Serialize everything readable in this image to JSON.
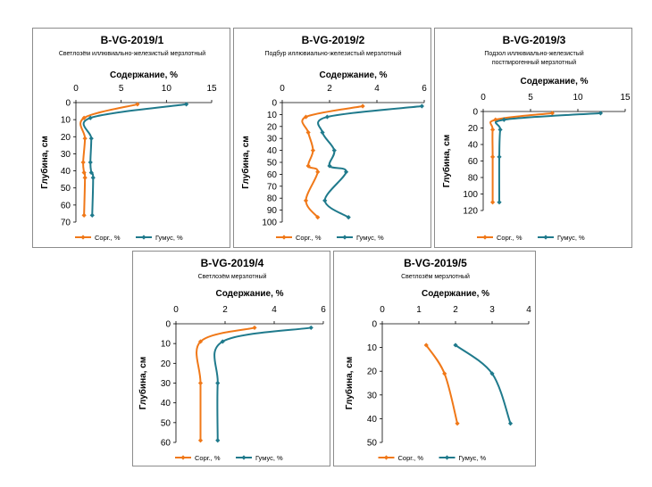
{
  "colors": {
    "corg": "#f07818",
    "humus": "#1f7a8c",
    "axis": "#000000",
    "frame": "#8c8c8c"
  },
  "chart_data": [
    {
      "type": "line",
      "title": "B-VG-2019/1",
      "subtitle": [
        "Светлозём иллювиально-железистый мерзлотный"
      ],
      "xlabel": "Содержание, %",
      "ylabel": "Глубина, см",
      "xlim": [
        0,
        15
      ],
      "xticks": [
        0,
        5,
        10,
        15
      ],
      "ylim": [
        0,
        70
      ],
      "yticks": [
        0,
        10,
        20,
        30,
        40,
        50,
        60,
        70
      ],
      "legend_position": "bottom",
      "series": [
        {
          "name": "Сорг., %",
          "color": "#f07818",
          "points": [
            [
              6.8,
              1
            ],
            [
              0.9,
              9
            ],
            [
              1.0,
              21
            ],
            [
              0.8,
              35
            ],
            [
              0.9,
              41
            ],
            [
              1.0,
              44
            ],
            [
              0.9,
              66
            ]
          ]
        },
        {
          "name": "Гумус, %",
          "color": "#1f7a8c",
          "points": [
            [
              12.2,
              1
            ],
            [
              1.6,
              9
            ],
            [
              1.7,
              21
            ],
            [
              1.6,
              35
            ],
            [
              1.7,
              41
            ],
            [
              1.9,
              44
            ],
            [
              1.8,
              66
            ]
          ]
        }
      ]
    },
    {
      "type": "line",
      "title": "B-VG-2019/2",
      "subtitle": [
        "Подбур иллювиально-железистый мерзлотный"
      ],
      "xlabel": "Содержание, %",
      "ylabel": "Глубина, см",
      "xlim": [
        0,
        6
      ],
      "xticks": [
        0,
        2,
        4,
        6
      ],
      "ylim": [
        0,
        100
      ],
      "yticks": [
        0,
        10,
        20,
        30,
        40,
        50,
        60,
        70,
        80,
        90,
        100
      ],
      "legend_position": "bottom",
      "series": [
        {
          "name": "Сорг., %",
          "color": "#f07818",
          "points": [
            [
              3.4,
              3
            ],
            [
              1.0,
              12
            ],
            [
              1.1,
              25
            ],
            [
              1.3,
              40
            ],
            [
              1.1,
              53
            ],
            [
              1.5,
              58
            ],
            [
              1.0,
              82
            ],
            [
              1.5,
              96
            ]
          ]
        },
        {
          "name": "Гумус, %",
          "color": "#1f7a8c",
          "points": [
            [
              5.9,
              3
            ],
            [
              1.9,
              12
            ],
            [
              1.7,
              25
            ],
            [
              2.2,
              40
            ],
            [
              2.0,
              53
            ],
            [
              2.7,
              58
            ],
            [
              1.8,
              82
            ],
            [
              2.8,
              96
            ]
          ]
        }
      ]
    },
    {
      "type": "line",
      "title": "B-VG-2019/3",
      "subtitle": [
        "Подзол иллювиально-железистый",
        "постпирогенный мерзлотный"
      ],
      "xlabel": "Содержание, %",
      "ylabel": "Глубина, см",
      "xlim": [
        0,
        15
      ],
      "xticks": [
        0,
        5,
        10,
        15
      ],
      "ylim": [
        0,
        120
      ],
      "yticks": [
        0,
        20,
        40,
        60,
        80,
        100,
        120
      ],
      "legend_position": "bottom",
      "series": [
        {
          "name": "Сорг., %",
          "color": "#f07818",
          "points": [
            [
              7.3,
              2
            ],
            [
              1.3,
              10
            ],
            [
              1.0,
              22
            ],
            [
              1.0,
              55
            ],
            [
              1.0,
              110
            ]
          ]
        },
        {
          "name": "Гумус, %",
          "color": "#1f7a8c",
          "points": [
            [
              12.4,
              2
            ],
            [
              2.2,
              10
            ],
            [
              1.8,
              22
            ],
            [
              1.7,
              55
            ],
            [
              1.7,
              110
            ]
          ]
        }
      ]
    },
    {
      "type": "line",
      "title": "B-VG-2019/4",
      "subtitle": [
        "Светлозём мерзлотный"
      ],
      "xlabel": "Содержание, %",
      "ylabel": "Глубина, см",
      "xlim": [
        0,
        6
      ],
      "xticks": [
        0,
        2,
        4,
        6
      ],
      "ylim": [
        0,
        60
      ],
      "yticks": [
        0,
        10,
        20,
        30,
        40,
        50,
        60
      ],
      "legend_position": "bottom",
      "series": [
        {
          "name": "Сорг., %",
          "color": "#f07818",
          "points": [
            [
              3.2,
              2
            ],
            [
              1.0,
              9
            ],
            [
              1.0,
              30
            ],
            [
              1.0,
              59
            ]
          ]
        },
        {
          "name": "Гумус, %",
          "color": "#1f7a8c",
          "points": [
            [
              5.5,
              2
            ],
            [
              1.9,
              9
            ],
            [
              1.7,
              30
            ],
            [
              1.7,
              59
            ]
          ]
        }
      ]
    },
    {
      "type": "line",
      "title": "B-VG-2019/5",
      "subtitle": [
        "Светлозём мерзлотный"
      ],
      "xlabel": "Содержание, %",
      "ylabel": "Глубина, см",
      "xlim": [
        0,
        4
      ],
      "xticks": [
        0,
        1,
        2,
        3,
        4
      ],
      "ylim": [
        0,
        50
      ],
      "yticks": [
        0,
        10,
        20,
        30,
        40,
        50
      ],
      "legend_position": "bottom",
      "series": [
        {
          "name": "Сорг., %",
          "color": "#f07818",
          "points": [
            [
              1.2,
              9
            ],
            [
              1.7,
              21
            ],
            [
              2.05,
              42
            ]
          ]
        },
        {
          "name": "Гумус, %",
          "color": "#1f7a8c",
          "points": [
            [
              2.0,
              9
            ],
            [
              3.0,
              21
            ],
            [
              3.5,
              42
            ]
          ]
        }
      ]
    }
  ]
}
